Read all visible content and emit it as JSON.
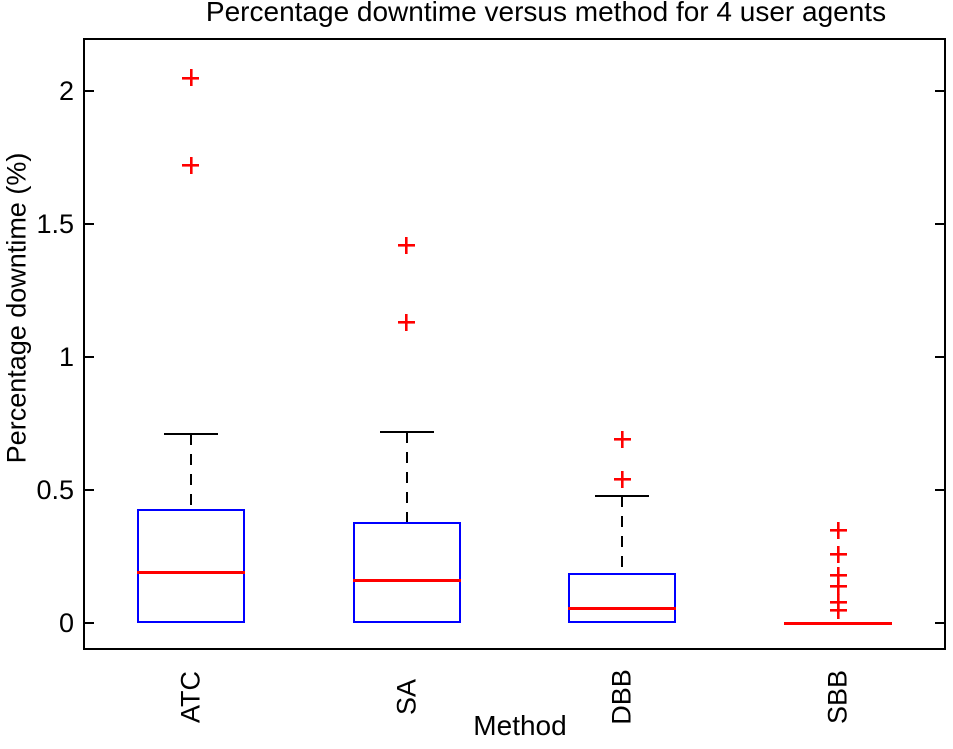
{
  "chart_data": {
    "type": "boxplot",
    "title": "Percentage downtime versus method for 4 user agents",
    "xlabel": "Method",
    "ylabel": "Percentage downtime (%)",
    "categories": [
      "ATC",
      "SA",
      "DBB",
      "SBB"
    ],
    "xlim": [
      0.5,
      4.5
    ],
    "ylim": [
      -0.1,
      2.2
    ],
    "yticks": [
      0,
      0.5,
      1,
      1.5,
      2
    ],
    "ytick_labels": [
      "0",
      "0.5",
      "1",
      "1.5",
      "2"
    ],
    "grid": false,
    "legend": false,
    "box_width": 0.5,
    "cap_width": 0.25,
    "colors": {
      "box": "#0000ff",
      "median": "#ff0000",
      "outlier": "#ff0000",
      "whisker": "#000000",
      "axis": "#000000"
    },
    "series": [
      {
        "label": "ATC",
        "q1": 0,
        "median": 0.19,
        "q3": 0.43,
        "whisker_low": 0,
        "whisker_high": 0.71,
        "outliers": [
          1.72,
          2.05
        ]
      },
      {
        "label": "SA",
        "q1": 0,
        "median": 0.16,
        "q3": 0.38,
        "whisker_low": 0,
        "whisker_high": 0.72,
        "outliers": [
          1.13,
          1.42
        ]
      },
      {
        "label": "DBB",
        "q1": 0,
        "median": 0.055,
        "q3": 0.19,
        "whisker_low": 0,
        "whisker_high": 0.48,
        "outliers": [
          0.54,
          0.69
        ]
      },
      {
        "label": "SBB",
        "q1": 0,
        "median": 0,
        "q3": 0,
        "whisker_low": 0,
        "whisker_high": 0,
        "outliers": [
          0.05,
          0.08,
          0.14,
          0.18,
          0.26,
          0.35
        ]
      }
    ]
  }
}
